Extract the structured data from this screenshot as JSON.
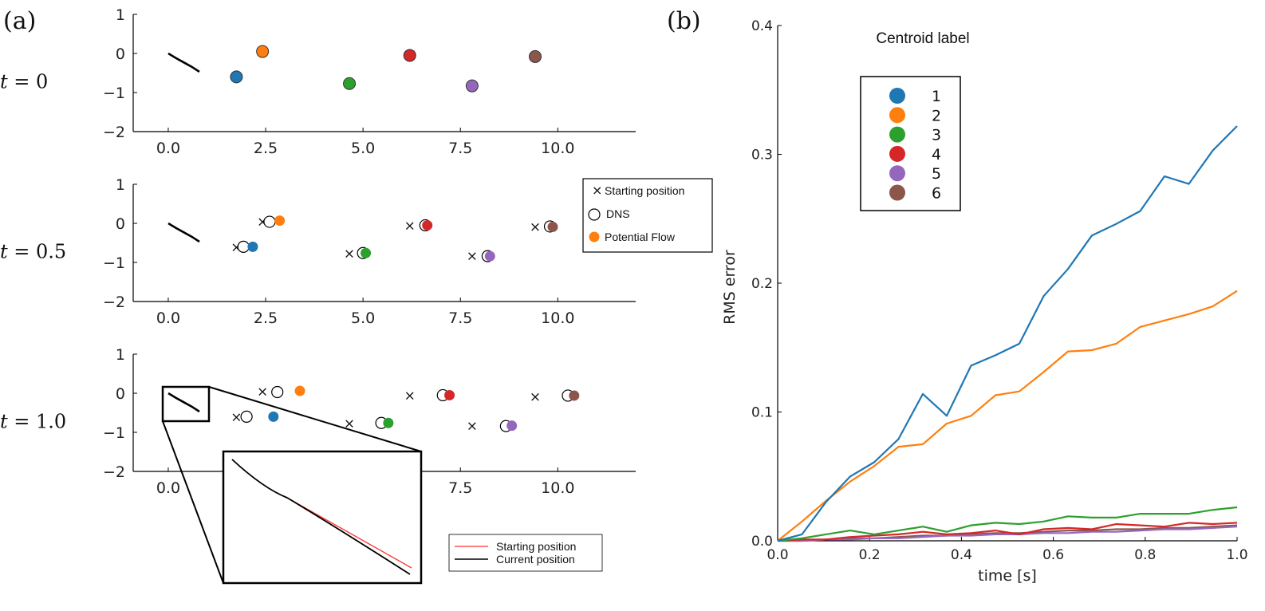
{
  "chart_data": [
    {
      "type": "scatter",
      "panel_label": "(a)",
      "xlim": [
        -0.9,
        12.0
      ],
      "ylim": [
        -2,
        1
      ],
      "x_ticks": [
        "0.0",
        "2.5",
        "5.0",
        "7.5",
        "10.0"
      ],
      "y_ticks": [
        "1",
        "0",
        "−1",
        "−2"
      ],
      "colors": [
        "#1f77b4",
        "#ff7f0e",
        "#2ca02c",
        "#d62728",
        "#9467bd",
        "#8c564b"
      ],
      "plate": [
        [
          0.0,
          0.0
        ],
        [
          0.2,
          -0.12
        ],
        [
          0.4,
          -0.23
        ],
        [
          0.6,
          -0.34
        ],
        [
          0.8,
          -0.47
        ]
      ],
      "start_positions": [
        [
          1.75,
          -0.6
        ],
        [
          2.42,
          0.05
        ],
        [
          4.65,
          -0.77
        ],
        [
          6.2,
          -0.05
        ],
        [
          7.8,
          -0.83
        ],
        [
          9.42,
          -0.08
        ]
      ],
      "legend": {
        "start": "Starting position",
        "dns": "DNS",
        "pf": "Potential Flow"
      },
      "snapshots": [
        {
          "t_var": "t",
          "t_eq": " = ",
          "t_val": "0",
          "dns": [],
          "pf": [
            [
              1.75,
              -0.6
            ],
            [
              2.42,
              0.05
            ],
            [
              4.65,
              -0.77
            ],
            [
              6.2,
              -0.05
            ],
            [
              7.8,
              -0.83
            ],
            [
              9.42,
              -0.08
            ]
          ]
        },
        {
          "t_var": "t",
          "t_eq": " = ",
          "t_val": "0.5",
          "dns": [
            [
              1.93,
              -0.6
            ],
            [
              2.6,
              0.04
            ],
            [
              5.0,
              -0.76
            ],
            [
              6.6,
              -0.05
            ],
            [
              8.2,
              -0.84
            ],
            [
              9.8,
              -0.08
            ]
          ],
          "pf": [
            [
              2.17,
              -0.6
            ],
            [
              2.86,
              0.07
            ],
            [
              5.07,
              -0.76
            ],
            [
              6.65,
              -0.05
            ],
            [
              8.26,
              -0.84
            ],
            [
              9.87,
              -0.09
            ]
          ]
        },
        {
          "t_var": "t",
          "t_eq": " = ",
          "t_val": "1.0",
          "dns": [
            [
              2.01,
              -0.6
            ],
            [
              2.8,
              0.03
            ],
            [
              5.47,
              -0.76
            ],
            [
              7.05,
              -0.05
            ],
            [
              8.67,
              -0.84
            ],
            [
              10.26,
              -0.06
            ]
          ],
          "pf": [
            [
              2.7,
              -0.6
            ],
            [
              3.38,
              0.06
            ],
            [
              5.65,
              -0.76
            ],
            [
              7.22,
              -0.05
            ],
            [
              8.82,
              -0.83
            ],
            [
              10.42,
              -0.06
            ]
          ]
        }
      ],
      "inset": {
        "legend": [
          "Starting position",
          "Current position"
        ],
        "line_colors": [
          "#ff3030",
          "#000000"
        ]
      }
    },
    {
      "type": "line",
      "panel_label": "(b)",
      "xlabel": "time [s]",
      "ylabel": "RMS error",
      "xlim": [
        0,
        1
      ],
      "ylim": [
        0,
        0.4
      ],
      "x_ticks": [
        "0.0",
        "0.2",
        "0.4",
        "0.6",
        "0.8",
        "1.0"
      ],
      "y_ticks": [
        "0.0",
        "0.1",
        "0.2",
        "0.3",
        "0.4"
      ],
      "legend_title": "Centroid label",
      "x": [
        0.0,
        0.053,
        0.105,
        0.158,
        0.21,
        0.263,
        0.316,
        0.368,
        0.421,
        0.474,
        0.526,
        0.579,
        0.632,
        0.684,
        0.737,
        0.789,
        0.842,
        0.895,
        0.947,
        1.0
      ],
      "series": [
        {
          "name": "1",
          "color": "#1f77b4",
          "values": [
            0.0,
            0.005,
            0.03,
            0.05,
            0.061,
            0.079,
            0.114,
            0.097,
            0.136,
            0.144,
            0.153,
            0.19,
            0.211,
            0.237,
            0.246,
            0.256,
            0.283,
            0.277,
            0.303,
            0.322
          ]
        },
        {
          "name": "2",
          "color": "#ff7f0e",
          "values": [
            0.0,
            0.015,
            0.031,
            0.046,
            0.058,
            0.073,
            0.075,
            0.091,
            0.097,
            0.113,
            0.116,
            0.131,
            0.147,
            0.148,
            0.153,
            0.166,
            0.171,
            0.176,
            0.182,
            0.194
          ]
        },
        {
          "name": "3",
          "color": "#2ca02c",
          "values": [
            0.0,
            0.002,
            0.005,
            0.008,
            0.005,
            0.008,
            0.011,
            0.007,
            0.012,
            0.014,
            0.013,
            0.015,
            0.019,
            0.018,
            0.018,
            0.021,
            0.021,
            0.021,
            0.024,
            0.026
          ]
        },
        {
          "name": "4",
          "color": "#d62728",
          "values": [
            0.0,
            0.001,
            0.001,
            0.003,
            0.004,
            0.005,
            0.007,
            0.005,
            0.006,
            0.008,
            0.005,
            0.009,
            0.01,
            0.009,
            0.013,
            0.012,
            0.011,
            0.014,
            0.013,
            0.014
          ]
        },
        {
          "name": "5",
          "color": "#9467bd",
          "values": [
            0.0,
            0.0,
            0.001,
            0.001,
            0.002,
            0.002,
            0.003,
            0.004,
            0.004,
            0.005,
            0.005,
            0.006,
            0.006,
            0.007,
            0.007,
            0.008,
            0.009,
            0.009,
            0.01,
            0.011
          ]
        },
        {
          "name": "6",
          "color": "#8c564b",
          "values": [
            0.0,
            0.0,
            0.001,
            0.002,
            0.002,
            0.003,
            0.004,
            0.004,
            0.005,
            0.006,
            0.006,
            0.007,
            0.008,
            0.008,
            0.009,
            0.009,
            0.01,
            0.01,
            0.011,
            0.012
          ]
        }
      ]
    }
  ]
}
